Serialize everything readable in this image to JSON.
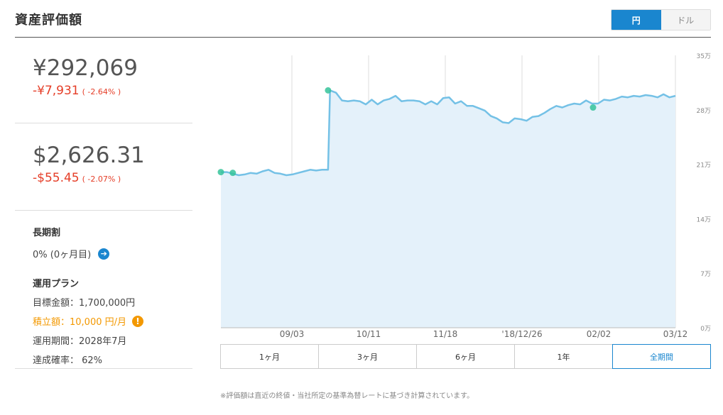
{
  "header": {
    "title": "資産評価額"
  },
  "currency_toggle": {
    "jpy": "円",
    "usd": "ドル",
    "selected": "円"
  },
  "jpy": {
    "value": "¥292,069",
    "change": "-¥7,931",
    "pct": "( -2.64% )"
  },
  "usd": {
    "value": "$2,626.31",
    "change": "-$55.45",
    "pct": "( -2.07% )"
  },
  "long_term": {
    "label": "長期割",
    "value": "0% (0ヶ月目)"
  },
  "plan": {
    "title": "運用プラン",
    "target": "目標金額：1,700,000円",
    "monthly": "積立額：10,000 円/月",
    "period": "運用期間：2028年7月",
    "probability": "達成確率： 62%"
  },
  "period_tabs": [
    "1ヶ月",
    "3ヶ月",
    "6ヶ月",
    "1年",
    "全期間"
  ],
  "selected_period": "全期間",
  "footnote": "※評価額は直近の終値・当社所定の基準為替レートに基づき計算されています。",
  "colors": {
    "accent": "#1a86cf",
    "negative": "#e53d27",
    "warning": "#f39800",
    "line": "#74c1e6",
    "fill": "#e4f1fa",
    "marker": "#35c39a"
  },
  "chart_data": {
    "type": "area",
    "x_tick_labels": [
      "09/03",
      "10/11",
      "11/18",
      "'18/12/26",
      "02/02",
      "03/12"
    ],
    "y_tick_labels": [
      "0万",
      "7万",
      "14万",
      "21万",
      "28万",
      "35万"
    ],
    "ylim": [
      0,
      350000
    ],
    "ylabel_unit": "万",
    "grid": "vertical",
    "series": [
      {
        "points": [
          [
            0,
            200000
          ],
          [
            6,
            200000
          ],
          [
            12,
            198000
          ],
          [
            18,
            196000
          ],
          [
            24,
            197000
          ],
          [
            30,
            199000
          ],
          [
            36,
            198000
          ],
          [
            42,
            201000
          ],
          [
            48,
            203000
          ],
          [
            54,
            199000
          ],
          [
            60,
            198000
          ],
          [
            66,
            196000
          ],
          [
            72,
            197000
          ],
          [
            78,
            199000
          ],
          [
            84,
            201000
          ],
          [
            90,
            203000
          ],
          [
            96,
            202000
          ],
          [
            102,
            203000
          ],
          [
            108,
            203000
          ],
          [
            110,
            305000
          ],
          [
            116,
            302000
          ],
          [
            122,
            292000
          ],
          [
            128,
            291000
          ],
          [
            134,
            292000
          ],
          [
            140,
            291000
          ],
          [
            146,
            287000
          ],
          [
            152,
            293000
          ],
          [
            158,
            287000
          ],
          [
            164,
            292000
          ],
          [
            170,
            294000
          ],
          [
            176,
            298000
          ],
          [
            182,
            291000
          ],
          [
            188,
            292000
          ],
          [
            194,
            292000
          ],
          [
            200,
            291000
          ],
          [
            206,
            287000
          ],
          [
            212,
            291000
          ],
          [
            218,
            287000
          ],
          [
            224,
            295000
          ],
          [
            230,
            296000
          ],
          [
            236,
            288000
          ],
          [
            242,
            291000
          ],
          [
            248,
            285000
          ],
          [
            254,
            285000
          ],
          [
            260,
            282000
          ],
          [
            266,
            279000
          ],
          [
            272,
            272000
          ],
          [
            278,
            269000
          ],
          [
            284,
            264000
          ],
          [
            290,
            263000
          ],
          [
            296,
            269000
          ],
          [
            302,
            268000
          ],
          [
            308,
            266000
          ],
          [
            314,
            271000
          ],
          [
            320,
            272000
          ],
          [
            326,
            276000
          ],
          [
            332,
            281000
          ],
          [
            338,
            285000
          ],
          [
            344,
            283000
          ],
          [
            350,
            286000
          ],
          [
            356,
            288000
          ],
          [
            362,
            287000
          ],
          [
            368,
            292000
          ],
          [
            374,
            288000
          ],
          [
            380,
            288000
          ],
          [
            386,
            293000
          ],
          [
            392,
            292000
          ],
          [
            398,
            294000
          ],
          [
            404,
            297000
          ],
          [
            410,
            296000
          ],
          [
            416,
            298000
          ],
          [
            422,
            297000
          ],
          [
            428,
            299000
          ],
          [
            434,
            298000
          ],
          [
            440,
            296000
          ],
          [
            446,
            300000
          ],
          [
            452,
            296000
          ],
          [
            458,
            298000
          ]
        ],
        "markers": [
          [
            0,
            200000
          ],
          [
            12,
            199000
          ],
          [
            108,
            305000
          ],
          [
            375,
            283000
          ]
        ],
        "domain_x": [
          0,
          458
        ]
      }
    ]
  }
}
